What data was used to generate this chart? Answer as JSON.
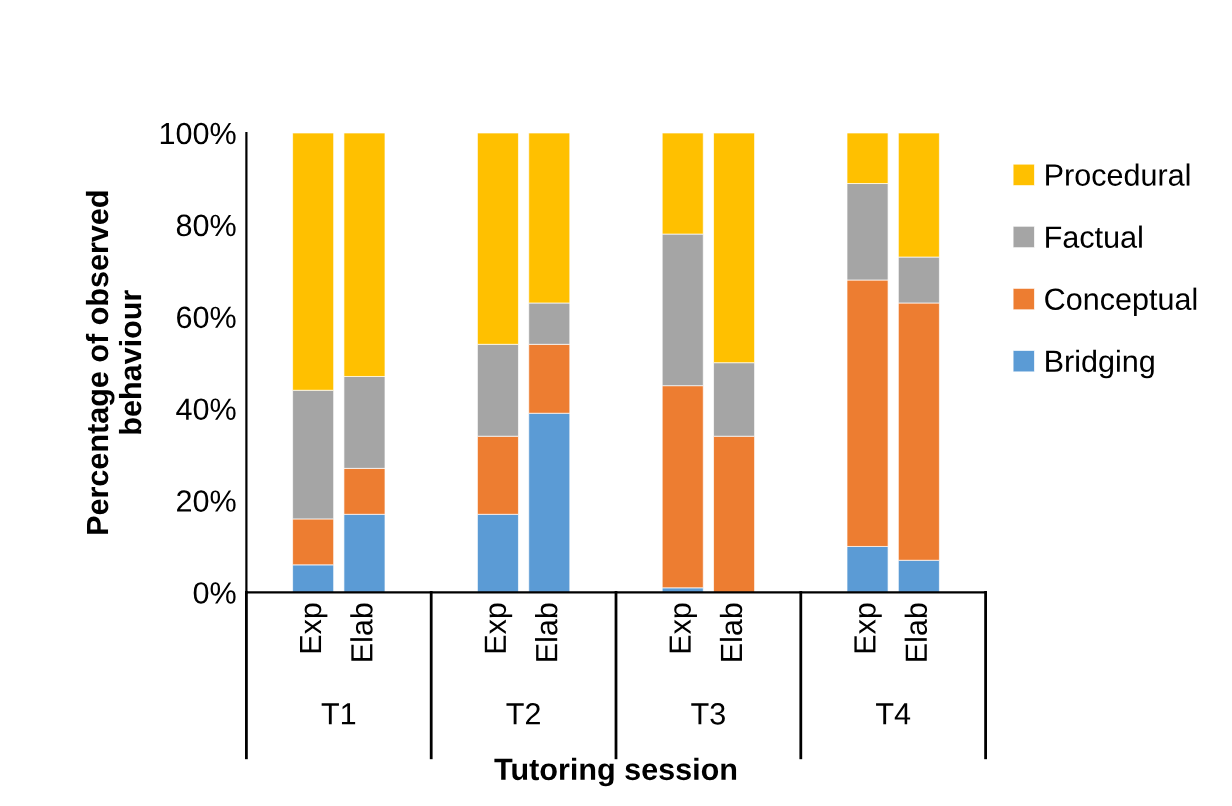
{
  "chart_data": {
    "type": "bar",
    "stacked": true,
    "xlabel": "Tutoring session",
    "ylabel": "Percentage of observed\nbehaviour",
    "categories": [
      "Exp",
      "Elab",
      "Exp",
      "Elab",
      "Exp",
      "Elab",
      "Exp",
      "Elab"
    ],
    "annotations": [
      "T1",
      "T2",
      "T3",
      "T4"
    ],
    "series": [
      {
        "name": "Bridging",
        "color": "#5b9bd5",
        "values": [
          6,
          17,
          17,
          39,
          1,
          0,
          10,
          7
        ]
      },
      {
        "name": "Conceptual",
        "color": "#ed7d31",
        "values": [
          10,
          10,
          17,
          15,
          44,
          34,
          58,
          56
        ]
      },
      {
        "name": "Factual",
        "color": "#a5a5a5",
        "values": [
          28,
          20,
          20,
          9,
          33,
          16,
          21,
          10
        ]
      },
      {
        "name": "Procedural",
        "color": "#ffc000",
        "values": [
          56,
          53,
          46,
          37,
          22,
          50,
          11,
          27
        ]
      }
    ],
    "ylim": [
      0,
      100
    ],
    "yticks": [
      {
        "value": 0,
        "label": "0%"
      },
      {
        "value": 20,
        "label": "20%"
      },
      {
        "value": 40,
        "label": "40%"
      },
      {
        "value": 60,
        "label": "60%"
      },
      {
        "value": 80,
        "label": "80%"
      },
      {
        "value": 100,
        "label": "100%"
      }
    ],
    "grid": false,
    "legend": "right"
  }
}
